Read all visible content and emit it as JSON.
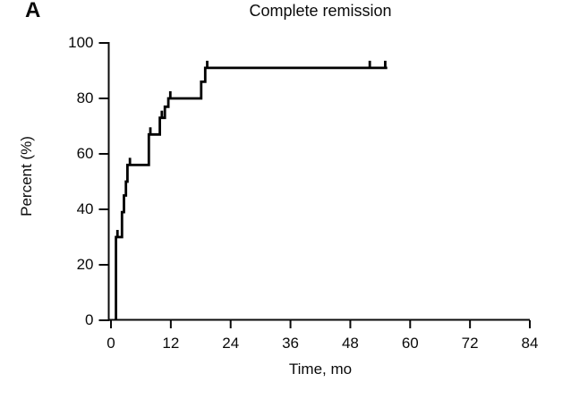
{
  "chart_data": {
    "type": "line",
    "subtype": "kaplan-meier-step",
    "panel_label": "A",
    "title": "Complete remission",
    "xlabel": "Time, mo",
    "ylabel": "Percent (%)",
    "xlim": [
      0,
      84
    ],
    "ylim": [
      0,
      100
    ],
    "xticks": [
      0,
      12,
      24,
      36,
      48,
      60,
      72,
      84
    ],
    "yticks": [
      0,
      20,
      40,
      60,
      80,
      100
    ],
    "grid": false,
    "legend": false,
    "axis_color": "#0a0a0a",
    "series": [
      {
        "name": "Complete remission",
        "color": "#000000",
        "step_points": [
          [
            1.0,
            0
          ],
          [
            1.0,
            30
          ],
          [
            2.2,
            30
          ],
          [
            2.2,
            39
          ],
          [
            2.6,
            39
          ],
          [
            2.6,
            45
          ],
          [
            3.0,
            45
          ],
          [
            3.0,
            50
          ],
          [
            3.3,
            50
          ],
          [
            3.3,
            56
          ],
          [
            7.6,
            56
          ],
          [
            7.6,
            67
          ],
          [
            9.8,
            67
          ],
          [
            9.8,
            73
          ],
          [
            10.8,
            73
          ],
          [
            10.8,
            77
          ],
          [
            11.5,
            77
          ],
          [
            11.5,
            80
          ],
          [
            18.1,
            80
          ],
          [
            18.1,
            86
          ],
          [
            18.9,
            86
          ],
          [
            18.9,
            91
          ],
          [
            55.4,
            91
          ]
        ],
        "censor_marks": [
          [
            1.3,
            30
          ],
          [
            3.8,
            56
          ],
          [
            7.9,
            67
          ],
          [
            10.2,
            73
          ],
          [
            11.9,
            80
          ],
          [
            19.3,
            91
          ],
          [
            51.9,
            91
          ],
          [
            55.0,
            91
          ]
        ]
      }
    ]
  }
}
